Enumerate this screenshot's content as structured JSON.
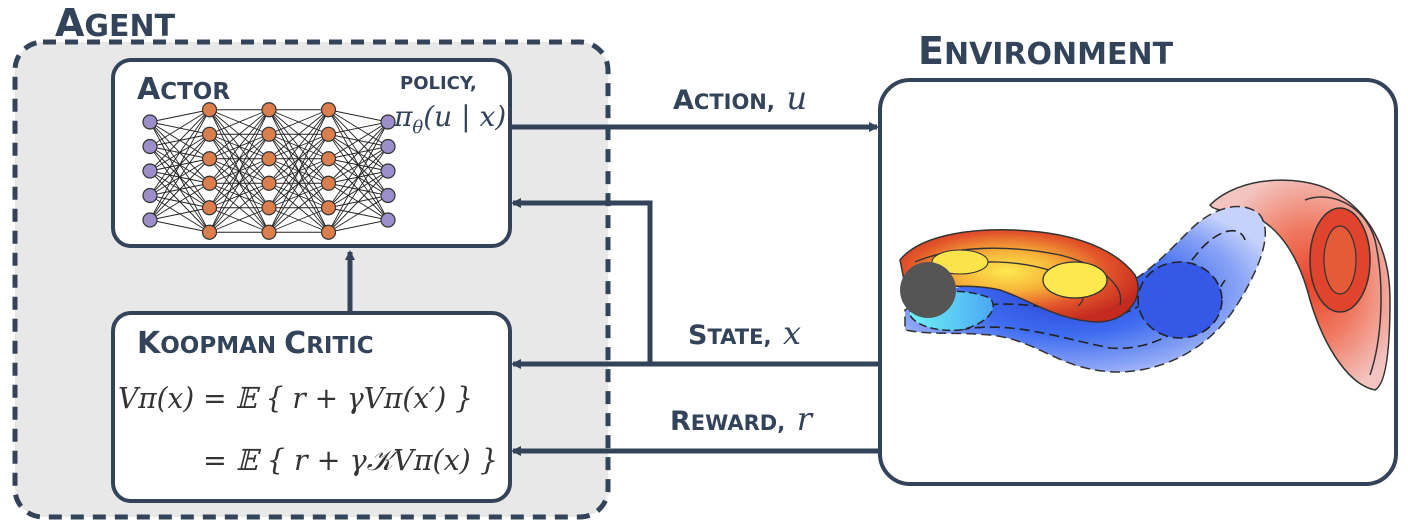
{
  "agent": {
    "title_big": "A",
    "title_small": "GENT",
    "actor": {
      "title_big": "A",
      "title_small": "CTOR",
      "policy_label": "POLICY,",
      "policy_expr_pi": "π",
      "policy_expr_theta": "θ",
      "policy_expr_args": "(u | x)",
      "network_layers": [
        5,
        6,
        6,
        6,
        5
      ],
      "node_colors": {
        "input": "#9b8ec9",
        "hidden": "#db7e4d",
        "output": "#9b8ec9"
      }
    },
    "critic": {
      "title_k_big": "K",
      "title_k_small": "OOPMAN ",
      "title_c_big": "C",
      "title_c_small": "RITIC",
      "equation_line1": "Vπ(x) = 𝔼 { r + γVπ(x′) }",
      "equation_line2": "= 𝔼 { r + γ𝒦Vπ(x) }"
    }
  },
  "environment": {
    "title_big": "E",
    "title_small": "NVIRONMENT"
  },
  "signals": {
    "action": {
      "big": "A",
      "small": "CTION,",
      "symbol": "u"
    },
    "state": {
      "big": "S",
      "small": "TATE,",
      "symbol": "x"
    },
    "reward": {
      "big": "R",
      "small": "EWARD,",
      "symbol": "r"
    }
  },
  "colors": {
    "frame": "#33435a",
    "agent_fill": "#e8e8e8",
    "warm_high": "#d83a1d",
    "warm_mid": "#f2a03a",
    "warm_low": "#fde04a",
    "cool_high": "#2f4fd1",
    "cool_low": "#6ff0f5",
    "cylinder": "#555555"
  }
}
